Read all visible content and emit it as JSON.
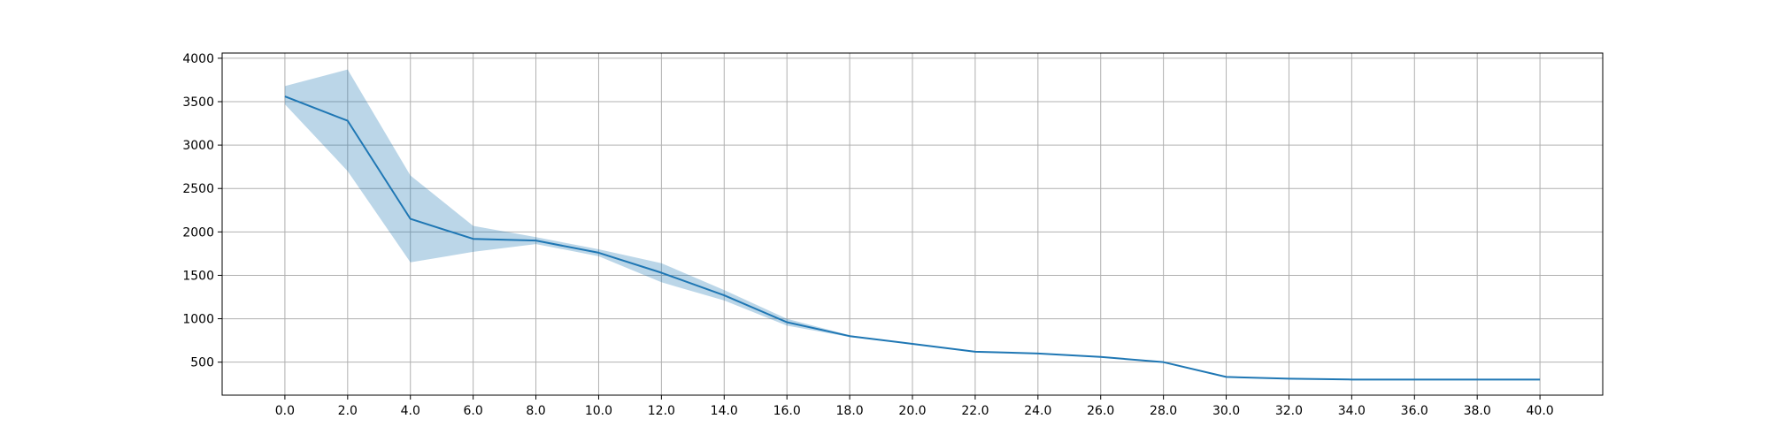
{
  "chart_data": {
    "type": "line",
    "title": "",
    "xlabel": "",
    "ylabel": "",
    "xlim": [
      -2,
      42
    ],
    "ylim": [
      120,
      4060
    ],
    "grid": true,
    "legend": "none",
    "x_ticks": [
      "0.0",
      "2.0",
      "4.0",
      "6.0",
      "8.0",
      "10.0",
      "12.0",
      "14.0",
      "16.0",
      "18.0",
      "20.0",
      "22.0",
      "24.0",
      "26.0",
      "28.0",
      "30.0",
      "32.0",
      "34.0",
      "36.0",
      "38.0",
      "40.0"
    ],
    "x_tick_values": [
      0,
      2,
      4,
      6,
      8,
      10,
      12,
      14,
      16,
      18,
      20,
      22,
      24,
      26,
      28,
      30,
      32,
      34,
      36,
      38,
      40
    ],
    "y_ticks": [
      "500",
      "1000",
      "1500",
      "2000",
      "2500",
      "3000",
      "3500",
      "4000"
    ],
    "y_tick_values": [
      500,
      1000,
      1500,
      2000,
      2500,
      3000,
      3500,
      4000
    ],
    "series": [
      {
        "color": "#1f77b4",
        "band_color": "#1f77b4",
        "band_opacity": 0.3,
        "x": [
          0,
          2,
          4,
          6,
          8,
          10,
          12,
          14,
          16,
          18,
          20,
          22,
          24,
          26,
          28,
          30,
          32,
          34,
          36,
          38,
          40
        ],
        "y": [
          3560,
          3280,
          2150,
          1920,
          1900,
          1760,
          1530,
          1270,
          960,
          800,
          710,
          620,
          600,
          560,
          500,
          330,
          310,
          300,
          300,
          300,
          300
        ],
        "y_upper": [
          3680,
          3870,
          2650,
          2070,
          1940,
          1800,
          1640,
          1330,
          1000,
          810,
          710,
          620,
          600,
          560,
          500,
          330,
          310,
          300,
          300,
          300,
          300
        ],
        "y_lower": [
          3470,
          2700,
          1650,
          1770,
          1860,
          1720,
          1420,
          1210,
          920,
          790,
          710,
          620,
          600,
          560,
          500,
          330,
          310,
          300,
          300,
          300,
          300
        ]
      }
    ]
  }
}
